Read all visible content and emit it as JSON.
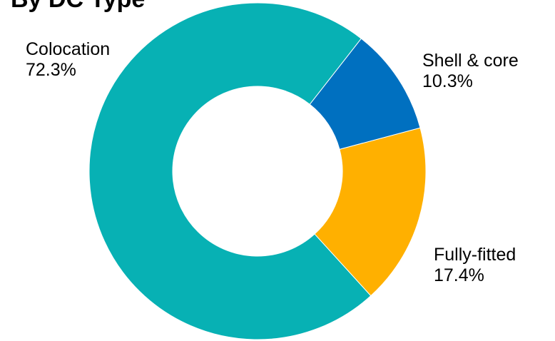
{
  "chart_data": {
    "type": "pie",
    "variant": "donut",
    "title": "By DC Type",
    "slices": [
      {
        "label": "Shell & core",
        "value": 10.3,
        "value_label": "10.3%",
        "color": "#0070C0"
      },
      {
        "label": "Fully-fitted",
        "value": 17.4,
        "value_label": "17.4%",
        "color": "#FFB000"
      },
      {
        "label": "Colocation",
        "value": 72.3,
        "value_label": "72.3%",
        "color": "#07B1B4"
      }
    ],
    "legend": "none",
    "labels": "outside"
  }
}
